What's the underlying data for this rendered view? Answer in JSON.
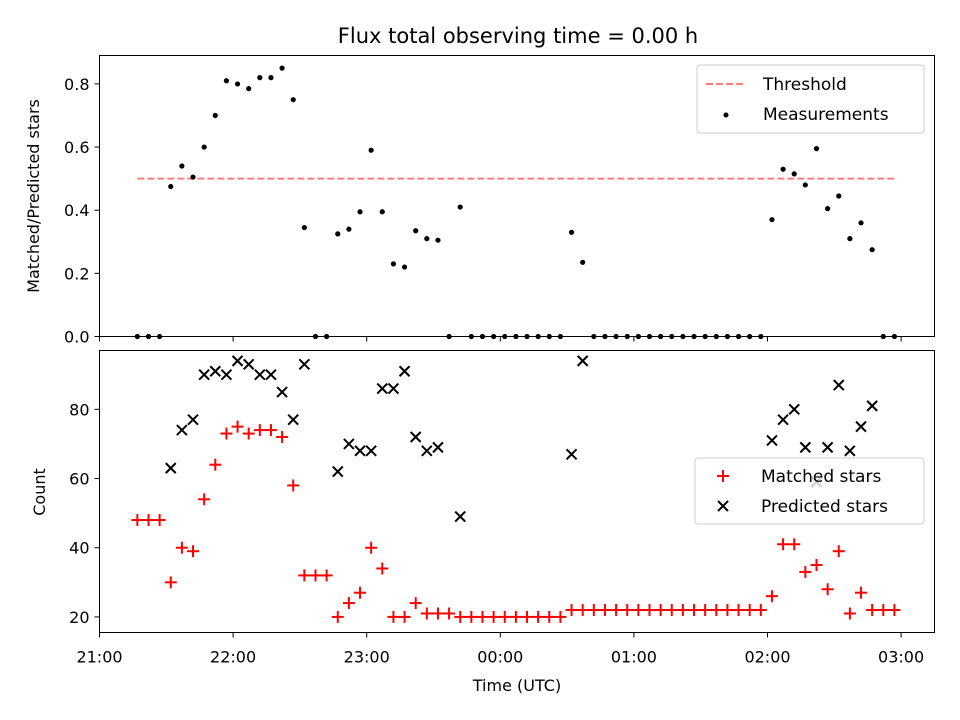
{
  "colors": {
    "threshold": "#ff7f7f",
    "measurement": "#000000",
    "matched": "#ff0000",
    "predicted": "#000000",
    "axes": "#000000",
    "background": "#ffffff"
  },
  "chart_data": [
    {
      "type": "scatter",
      "title": "Flux total observing time = 0.00 h",
      "xlabel": "",
      "ylabel": "Matched/Predicted stars",
      "xlim": [
        "21:00",
        "03:15"
      ],
      "ylim": [
        0,
        0.89
      ],
      "x_tick_labels": [
        "21:00",
        "22:00",
        "23:00",
        "00:00",
        "01:00",
        "02:00",
        "03:00"
      ],
      "y_ticks": [
        0.0,
        0.2,
        0.4,
        0.6,
        0.8
      ],
      "y_tick_labels": [
        "0.0",
        "0.2",
        "0.4",
        "0.6",
        "0.8"
      ],
      "grid": false,
      "legend_position": "top-right",
      "threshold": {
        "name": "Threshold",
        "value": 0.5,
        "x_range": [
          "21:17",
          "02:57"
        ],
        "style": "dashed"
      },
      "series": [
        {
          "name": "Measurements",
          "marker": "dot",
          "x": [
            "21:17",
            "21:22",
            "21:27",
            "21:32",
            "21:37",
            "21:42",
            "21:47",
            "21:52",
            "21:57",
            "22:02",
            "22:07",
            "22:12",
            "22:17",
            "22:22",
            "22:27",
            "22:32",
            "22:37",
            "22:42",
            "22:47",
            "22:52",
            "22:57",
            "23:02",
            "23:07",
            "23:12",
            "23:17",
            "23:22",
            "23:27",
            "23:32",
            "23:37",
            "23:42",
            "23:47",
            "23:52",
            "23:57",
            "00:02",
            "00:07",
            "00:12",
            "00:17",
            "00:22",
            "00:27",
            "00:32",
            "00:37",
            "00:42",
            "00:47",
            "00:52",
            "00:57",
            "01:02",
            "01:07",
            "01:12",
            "01:17",
            "01:22",
            "01:27",
            "01:32",
            "01:37",
            "01:42",
            "01:47",
            "01:52",
            "01:57",
            "02:02",
            "02:07",
            "02:12",
            "02:17",
            "02:22",
            "02:27",
            "02:32",
            "02:37",
            "02:42",
            "02:47",
            "02:52",
            "02:57"
          ],
          "y": [
            0,
            0,
            0,
            0.475,
            0.54,
            0.505,
            0.6,
            0.7,
            0.81,
            0.8,
            0.785,
            0.82,
            0.82,
            0.85,
            0.75,
            0.345,
            0,
            0,
            0.325,
            0.34,
            0.395,
            0.59,
            0.395,
            0.23,
            0.22,
            0.335,
            0.31,
            0.305,
            0,
            0.41,
            0,
            0,
            0,
            0,
            0,
            0,
            0,
            0,
            0,
            0.33,
            0.235,
            0,
            0,
            0,
            0,
            0,
            0,
            0,
            0,
            0,
            0,
            0,
            0,
            0,
            0,
            0,
            0,
            0.37,
            0.53,
            0.515,
            0.48,
            0.595,
            0.405,
            0.445,
            0.31,
            0.36,
            0.275,
            0,
            0
          ]
        }
      ]
    },
    {
      "type": "scatter",
      "title": "",
      "xlabel": "Time (UTC)",
      "ylabel": "Count",
      "xlim": [
        "21:00",
        "03:15"
      ],
      "ylim": [
        15.5,
        97
      ],
      "x_tick_labels": [
        "21:00",
        "22:00",
        "23:00",
        "00:00",
        "01:00",
        "02:00",
        "03:00"
      ],
      "y_ticks": [
        20,
        40,
        60,
        80
      ],
      "y_tick_labels": [
        "20",
        "40",
        "60",
        "80"
      ],
      "grid": false,
      "legend_position": "center-right",
      "series": [
        {
          "name": "Matched stars",
          "marker": "plus",
          "x": [
            "21:17",
            "21:22",
            "21:27",
            "21:32",
            "21:37",
            "21:42",
            "21:47",
            "21:52",
            "21:57",
            "22:02",
            "22:07",
            "22:12",
            "22:17",
            "22:22",
            "22:27",
            "22:32",
            "22:37",
            "22:42",
            "22:47",
            "22:52",
            "22:57",
            "23:02",
            "23:07",
            "23:12",
            "23:17",
            "23:22",
            "23:27",
            "23:32",
            "23:37",
            "23:42",
            "23:47",
            "23:52",
            "23:57",
            "00:02",
            "00:07",
            "00:12",
            "00:17",
            "00:22",
            "00:27",
            "00:32",
            "00:37",
            "00:42",
            "00:47",
            "00:52",
            "00:57",
            "01:02",
            "01:07",
            "01:12",
            "01:17",
            "01:22",
            "01:27",
            "01:32",
            "01:37",
            "01:42",
            "01:47",
            "01:52",
            "01:57",
            "02:02",
            "02:07",
            "02:12",
            "02:17",
            "02:22",
            "02:27",
            "02:32",
            "02:37",
            "02:42",
            "02:47",
            "02:52",
            "02:57"
          ],
          "y": [
            48,
            48,
            48,
            30,
            40,
            39,
            54,
            64,
            73,
            75,
            73,
            74,
            74,
            72,
            58,
            32,
            32,
            32,
            20,
            24,
            27,
            40,
            34,
            20,
            20,
            24,
            21,
            21,
            21,
            20,
            20,
            20,
            20,
            20,
            20,
            20,
            20,
            20,
            20,
            22,
            22,
            22,
            22,
            22,
            22,
            22,
            22,
            22,
            22,
            22,
            22,
            22,
            22,
            22,
            22,
            22,
            22,
            26,
            41,
            41,
            33,
            35,
            28,
            39,
            21,
            27,
            22,
            22,
            22
          ]
        },
        {
          "name": "Predicted stars",
          "marker": "x",
          "x": [
            "21:32",
            "21:37",
            "21:42",
            "21:47",
            "21:52",
            "21:57",
            "22:02",
            "22:07",
            "22:12",
            "22:17",
            "22:22",
            "22:27",
            "22:32",
            "22:47",
            "22:52",
            "22:57",
            "23:02",
            "23:07",
            "23:12",
            "23:17",
            "23:22",
            "23:27",
            "23:32",
            "23:42",
            "00:32",
            "00:37",
            "02:02",
            "02:07",
            "02:12",
            "02:17",
            "02:22",
            "02:27",
            "02:32",
            "02:37",
            "02:42",
            "02:47"
          ],
          "y": [
            63,
            74,
            77,
            90,
            91,
            90,
            94,
            93,
            90,
            90,
            85,
            77,
            93,
            62,
            70,
            68,
            68,
            86,
            86,
            91,
            72,
            68,
            69,
            49,
            67,
            94,
            71,
            77,
            80,
            69,
            59,
            69,
            87,
            68,
            75,
            81
          ]
        }
      ]
    }
  ]
}
